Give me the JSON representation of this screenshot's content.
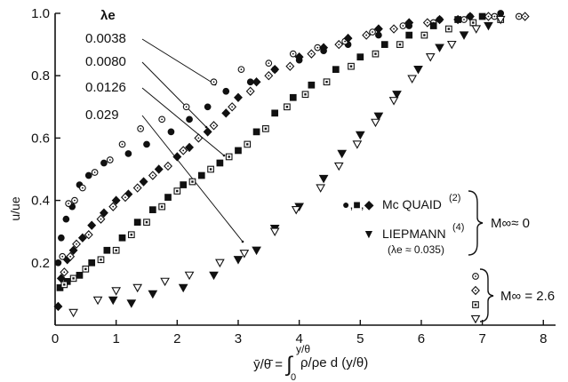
{
  "chart_data": {
    "type": "scatter",
    "xlabel": "ȳ/θ̄ =",
    "xlabel_integral_upper": "y/θ",
    "xlabel_integral_lower": "0",
    "xlabel_integrand": "ρ/ρe d (y/θ)",
    "ylabel": "u/ue",
    "xlim": [
      0,
      8.2
    ],
    "ylim": [
      0,
      1.0
    ],
    "xticks": [
      "0",
      "1",
      "2",
      "3",
      "4",
      "5",
      "6",
      "7",
      "8"
    ],
    "yticks": [
      "0.2",
      "0.4",
      "0.6",
      "0.8",
      "1.0"
    ],
    "lambda_header": "λe",
    "lambda_values": [
      "0.0038",
      "0.0080",
      "0.0126",
      "0.029"
    ],
    "legend": {
      "mcquaid_symbols": "●,■,◆",
      "mcquaid_label": "Mc QUAID",
      "mcquaid_ref": "(2)",
      "liepmann_symbol": "▼",
      "liepmann_label": "LIEPMANN",
      "liepmann_ref": "(4)",
      "liepmann_lambda": "(λe ≈ 0.035)",
      "mach_low": "M∞≈ 0",
      "mach_high": "M∞ = 2.6"
    },
    "series": [
      {
        "marker": "circle-filled",
        "lambda": "0.0038",
        "points": [
          [
            0.05,
            0.2
          ],
          [
            0.1,
            0.28
          ],
          [
            0.18,
            0.34
          ],
          [
            0.28,
            0.38
          ],
          [
            0.4,
            0.45
          ],
          [
            0.55,
            0.48
          ],
          [
            0.8,
            0.52
          ],
          [
            1.2,
            0.55
          ],
          [
            1.5,
            0.58
          ],
          [
            1.9,
            0.62
          ],
          [
            2.2,
            0.66
          ],
          [
            2.5,
            0.7
          ],
          [
            2.8,
            0.75
          ],
          [
            3.2,
            0.78
          ],
          [
            3.6,
            0.82
          ],
          [
            4.0,
            0.85
          ],
          [
            4.4,
            0.88
          ],
          [
            4.8,
            0.9
          ],
          [
            5.3,
            0.93
          ],
          [
            5.8,
            0.96
          ],
          [
            6.3,
            0.98
          ],
          [
            6.8,
            0.99
          ],
          [
            7.3,
            1.0
          ]
        ]
      },
      {
        "marker": "circle-open",
        "lambda": "0.0038",
        "points": [
          [
            0.12,
            0.22
          ],
          [
            0.22,
            0.39
          ],
          [
            0.32,
            0.4
          ],
          [
            0.45,
            0.44
          ],
          [
            0.65,
            0.49
          ],
          [
            0.9,
            0.53
          ],
          [
            1.1,
            0.58
          ],
          [
            1.4,
            0.63
          ],
          [
            1.75,
            0.66
          ],
          [
            2.15,
            0.7
          ],
          [
            2.6,
            0.78
          ],
          [
            3.05,
            0.82
          ],
          [
            3.5,
            0.84
          ],
          [
            3.9,
            0.87
          ],
          [
            4.3,
            0.89
          ],
          [
            4.75,
            0.91
          ],
          [
            5.2,
            0.94
          ],
          [
            5.7,
            0.96
          ],
          [
            6.2,
            0.97
          ],
          [
            6.7,
            0.98
          ],
          [
            7.2,
            0.99
          ],
          [
            7.6,
            0.99
          ]
        ]
      },
      {
        "marker": "diamond-filled",
        "lambda": "0.0080",
        "points": [
          [
            0.05,
            0.06
          ],
          [
            0.1,
            0.15
          ],
          [
            0.2,
            0.21
          ],
          [
            0.3,
            0.24
          ],
          [
            0.45,
            0.28
          ],
          [
            0.6,
            0.32
          ],
          [
            0.8,
            0.36
          ],
          [
            1.0,
            0.4
          ],
          [
            1.2,
            0.42
          ],
          [
            1.45,
            0.46
          ],
          [
            1.7,
            0.5
          ],
          [
            2.0,
            0.54
          ],
          [
            2.2,
            0.57
          ],
          [
            2.5,
            0.62
          ],
          [
            2.8,
            0.68
          ],
          [
            3.0,
            0.73
          ],
          [
            3.3,
            0.78
          ],
          [
            3.6,
            0.82
          ],
          [
            4.0,
            0.86
          ],
          [
            4.4,
            0.89
          ],
          [
            4.8,
            0.92
          ],
          [
            5.3,
            0.95
          ],
          [
            5.8,
            0.97
          ],
          [
            6.3,
            0.98
          ],
          [
            6.8,
            0.99
          ]
        ]
      },
      {
        "marker": "diamond-open",
        "lambda": "0.0080",
        "points": [
          [
            0.15,
            0.17
          ],
          [
            0.25,
            0.22
          ],
          [
            0.35,
            0.26
          ],
          [
            0.55,
            0.29
          ],
          [
            0.75,
            0.34
          ],
          [
            0.95,
            0.38
          ],
          [
            1.15,
            0.41
          ],
          [
            1.35,
            0.44
          ],
          [
            1.6,
            0.48
          ],
          [
            1.85,
            0.51
          ],
          [
            2.1,
            0.56
          ],
          [
            2.35,
            0.6
          ],
          [
            2.6,
            0.64
          ],
          [
            2.9,
            0.7
          ],
          [
            3.2,
            0.75
          ],
          [
            3.5,
            0.8
          ],
          [
            3.85,
            0.83
          ],
          [
            4.2,
            0.87
          ],
          [
            4.65,
            0.9
          ],
          [
            5.1,
            0.93
          ],
          [
            5.55,
            0.95
          ],
          [
            6.1,
            0.97
          ],
          [
            6.6,
            0.98
          ],
          [
            7.1,
            0.99
          ],
          [
            7.7,
            0.99
          ]
        ]
      },
      {
        "marker": "square-filled",
        "lambda": "0.0126",
        "points": [
          [
            0.08,
            0.12
          ],
          [
            0.2,
            0.14
          ],
          [
            0.4,
            0.16
          ],
          [
            0.6,
            0.2
          ],
          [
            0.85,
            0.24
          ],
          [
            1.1,
            0.28
          ],
          [
            1.35,
            0.33
          ],
          [
            1.6,
            0.37
          ],
          [
            1.85,
            0.41
          ],
          [
            2.1,
            0.45
          ],
          [
            2.4,
            0.48
          ],
          [
            2.7,
            0.52
          ],
          [
            3.0,
            0.56
          ],
          [
            3.3,
            0.62
          ],
          [
            3.6,
            0.68
          ],
          [
            3.9,
            0.73
          ],
          [
            4.2,
            0.77
          ],
          [
            4.6,
            0.82
          ],
          [
            5.0,
            0.86
          ],
          [
            5.4,
            0.9
          ],
          [
            5.8,
            0.93
          ],
          [
            6.2,
            0.96
          ],
          [
            6.6,
            0.98
          ],
          [
            7.0,
            0.99
          ]
        ]
      },
      {
        "marker": "square-open",
        "lambda": "0.0126",
        "points": [
          [
            0.15,
            0.13
          ],
          [
            0.3,
            0.15
          ],
          [
            0.5,
            0.18
          ],
          [
            0.75,
            0.21
          ],
          [
            1.0,
            0.24
          ],
          [
            1.25,
            0.29
          ],
          [
            1.5,
            0.33
          ],
          [
            1.75,
            0.38
          ],
          [
            2.0,
            0.43
          ],
          [
            2.25,
            0.46
          ],
          [
            2.55,
            0.5
          ],
          [
            2.85,
            0.54
          ],
          [
            3.15,
            0.58
          ],
          [
            3.45,
            0.63
          ],
          [
            3.8,
            0.7
          ],
          [
            4.1,
            0.74
          ],
          [
            4.45,
            0.78
          ],
          [
            4.85,
            0.83
          ],
          [
            5.25,
            0.87
          ],
          [
            5.65,
            0.9
          ],
          [
            6.05,
            0.93
          ],
          [
            6.45,
            0.95
          ],
          [
            6.85,
            0.97
          ],
          [
            7.3,
            0.98
          ]
        ]
      },
      {
        "marker": "triangle-filled",
        "lambda": "0.035",
        "points": [
          [
            0.95,
            0.08
          ],
          [
            1.25,
            0.07
          ],
          [
            1.6,
            0.1
          ],
          [
            2.1,
            0.12
          ],
          [
            2.6,
            0.16
          ],
          [
            3.0,
            0.21
          ],
          [
            3.3,
            0.24
          ],
          [
            3.6,
            0.31
          ],
          [
            4.0,
            0.38
          ],
          [
            4.4,
            0.47
          ],
          [
            4.7,
            0.55
          ],
          [
            5.0,
            0.61
          ],
          [
            5.3,
            0.67
          ],
          [
            5.6,
            0.74
          ],
          [
            5.95,
            0.82
          ],
          [
            6.3,
            0.89
          ],
          [
            6.7,
            0.93
          ],
          [
            7.1,
            0.96
          ]
        ]
      },
      {
        "marker": "triangle-open",
        "lambda": "0.029",
        "points": [
          [
            0.3,
            0.04
          ],
          [
            0.7,
            0.08
          ],
          [
            1.0,
            0.11
          ],
          [
            1.35,
            0.12
          ],
          [
            1.8,
            0.14
          ],
          [
            2.2,
            0.16
          ],
          [
            2.7,
            0.2
          ],
          [
            3.1,
            0.23
          ],
          [
            3.6,
            0.3
          ],
          [
            3.95,
            0.37
          ],
          [
            4.35,
            0.44
          ],
          [
            4.65,
            0.51
          ],
          [
            4.95,
            0.58
          ],
          [
            5.25,
            0.65
          ],
          [
            5.55,
            0.72
          ],
          [
            5.85,
            0.79
          ],
          [
            6.15,
            0.86
          ],
          [
            6.5,
            0.9
          ],
          [
            6.9,
            0.95
          ],
          [
            7.3,
            0.98
          ]
        ]
      }
    ]
  }
}
